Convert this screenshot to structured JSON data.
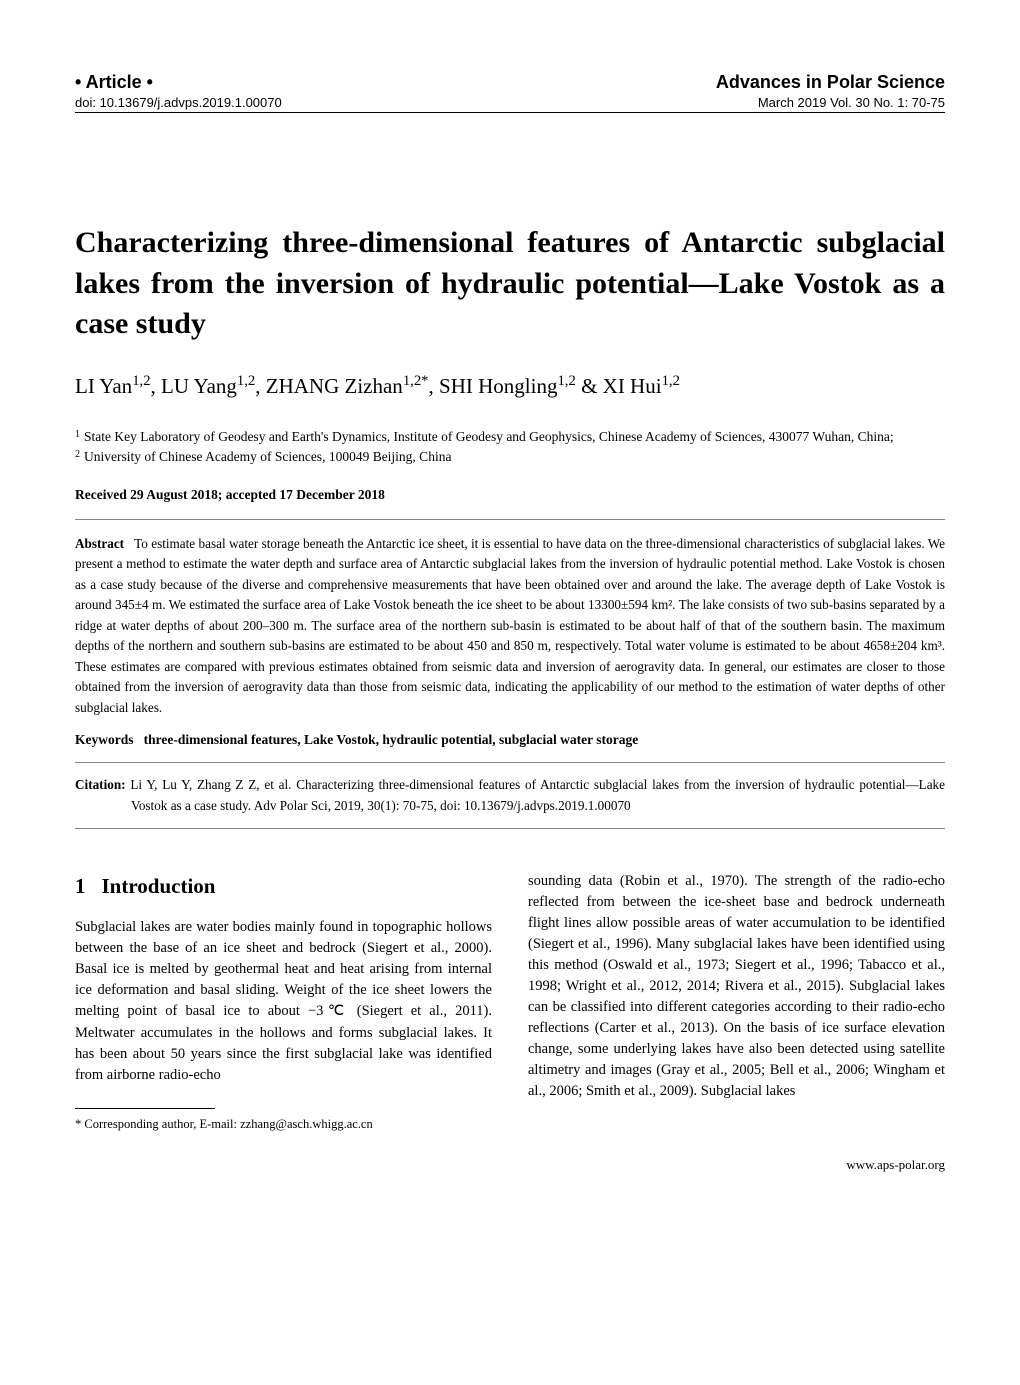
{
  "header": {
    "article_label": "• Article •",
    "journal_name": "Advances in Polar Science",
    "doi": "doi: 10.13679/j.advps.2019.1.00070",
    "issue_info": "March 2019 Vol. 30 No. 1: 70-75"
  },
  "title": "Characterizing three-dimensional features of Antarctic subglacial lakes from the inversion of hydraulic potential—Lake Vostok as a case study",
  "authors_html": "LI Yan<sup>1,2</sup>, LU Yang<sup>1,2</sup>, ZHANG Zizhan<sup>1,2*</sup>, SHI Hongling<sup>1,2</sup> & XI Hui<sup>1,2</sup>",
  "affiliations": [
    {
      "num": "1",
      "text": "State Key Laboratory of Geodesy and Earth's Dynamics, Institute of Geodesy and Geophysics, Chinese Academy of Sciences, 430077 Wuhan, China;"
    },
    {
      "num": "2",
      "text": "University of Chinese Academy of Sciences, 100049 Beijing, China"
    }
  ],
  "received": "Received 29 August 2018; accepted 17 December 2018",
  "abstract": {
    "label": "Abstract",
    "text": "To estimate basal water storage beneath the Antarctic ice sheet, it is essential to have data on the three-dimensional characteristics of subglacial lakes. We present a method to estimate the water depth and surface area of Antarctic subglacial lakes from the inversion of hydraulic potential method. Lake Vostok is chosen as a case study because of the diverse and comprehensive measurements that have been obtained over and around the lake. The average depth of Lake Vostok is around 345±4 m. We estimated the surface area of Lake Vostok beneath the ice sheet to be about 13300±594 km². The lake consists of two sub-basins separated by a ridge at water depths of about 200–300 m. The surface area of the northern sub-basin is estimated to be about half of that of the southern basin. The maximum depths of the northern and southern sub-basins are estimated to be about 450 and 850 m, respectively. Total water volume is estimated to be about 4658±204 km³. These estimates are compared with previous estimates obtained from seismic data and inversion of aerogravity data. In general, our estimates are closer to those obtained from the inversion of aerogravity data than those from seismic data, indicating the applicability of our method to the estimation of water depths of other subglacial lakes."
  },
  "keywords": {
    "label": "Keywords",
    "text": "three-dimensional features, Lake Vostok, hydraulic potential, subglacial water storage"
  },
  "citation": {
    "label": "Citation:",
    "text": "Li Y, Lu Y, Zhang Z Z, et al. Characterizing three-dimensional features of Antarctic subglacial lakes from the inversion of hydraulic potential—Lake Vostok as a case study. Adv Polar Sci, 2019, 30(1): 70-75, doi: 10.13679/j.advps.2019.1.00070"
  },
  "section1": {
    "number": "1",
    "heading": "Introduction",
    "col1": "Subglacial lakes are water bodies mainly found in topographic hollows between the base of an ice sheet and bedrock (Siegert et al., 2000). Basal ice is melted by geothermal heat and heat arising from internal ice deformation and basal sliding. Weight of the ice sheet lowers the melting point of basal ice to about −3℃ (Siegert et al., 2011). Meltwater accumulates in the hollows and forms subglacial lakes. It has been about 50 years since the first subglacial lake was identified from airborne radio-echo",
    "col2": "sounding data (Robin et al., 1970). The strength of the radio-echo reflected from between the ice-sheet base and bedrock underneath flight lines allow possible areas of water accumulation to be identified (Siegert et al., 1996). Many subglacial lakes have been identified using this method (Oswald et al., 1973; Siegert et al., 1996; Tabacco et al., 1998; Wright et al., 2012, 2014; Rivera et al., 2015). Subglacial lakes can be classified into different categories according to their radio-echo reflections (Carter et al., 2013). On the basis of ice surface elevation change, some underlying lakes have also been detected using satellite altimetry and images (Gray et al., 2005; Bell et al., 2006; Wingham et al., 2006; Smith et al., 2009). Subglacial lakes"
  },
  "footnote": {
    "marker": "*",
    "text": "Corresponding author, E-mail: zzhang@asch.whigg.ac.cn"
  },
  "footer_url": "www.aps-polar.org"
}
